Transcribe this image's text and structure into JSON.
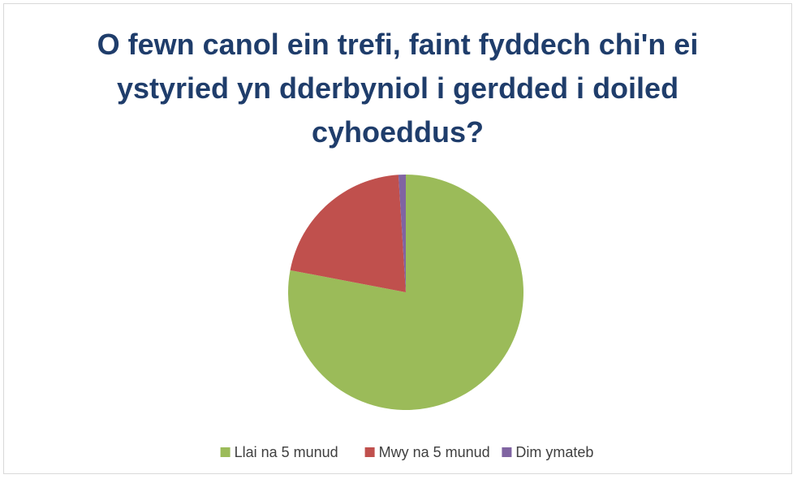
{
  "chart_data": {
    "type": "pie",
    "title": "O fewn canol ein trefi, faint fyddech chi'n ei ystyried yn dderbyniol i gerdded i doiled cyhoeddus?",
    "categories": [
      "Llai na 5 munud",
      "Mwy na 5 munud",
      "Dim ymateb"
    ],
    "values": [
      78,
      21,
      1
    ],
    "colors": [
      "#9bbb59",
      "#c0504d",
      "#8064a2"
    ],
    "legend": "bottom"
  }
}
